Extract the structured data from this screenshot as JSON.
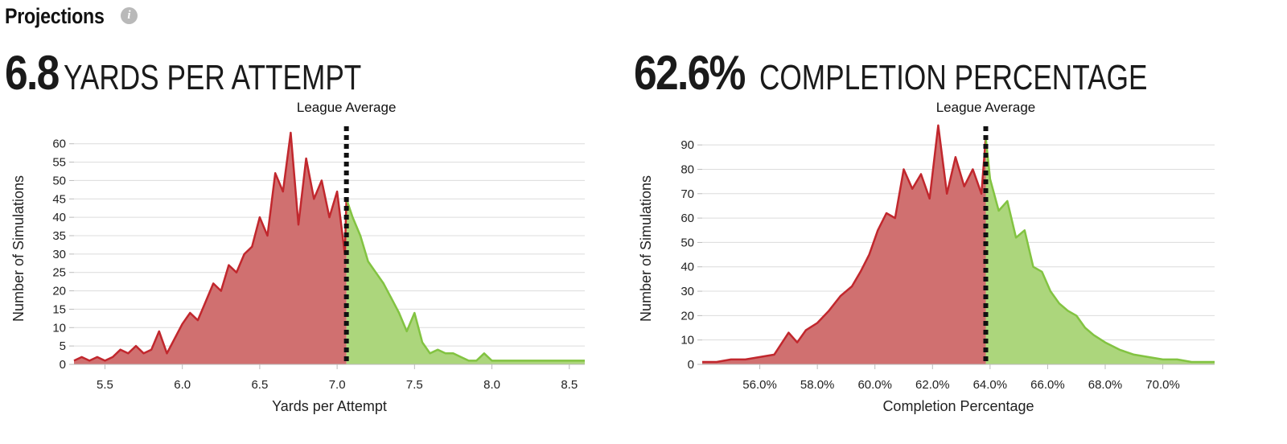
{
  "header": {
    "title": "Projections",
    "info_icon": "info-icon"
  },
  "chart_data": [
    {
      "type": "area",
      "stat_value": "6.8",
      "stat_label": "YARDS PER ATTEMPT",
      "xlabel": "Yards per Attempt",
      "ylabel": "Number of Simulations",
      "xlim": [
        5.3,
        8.6
      ],
      "ylim": [
        0,
        63
      ],
      "x_ticks": [
        5.5,
        6.0,
        6.5,
        7.0,
        7.5,
        8.0,
        8.5
      ],
      "x_tick_labels": [
        "5.5",
        "6.0",
        "6.5",
        "7.0",
        "7.5",
        "8.0",
        "8.5"
      ],
      "y_ticks": [
        0,
        5,
        10,
        15,
        20,
        25,
        30,
        35,
        40,
        45,
        50,
        55,
        60
      ],
      "reference_line": {
        "label": "League Average",
        "x": 7.06
      },
      "below_color": "#c1272d",
      "below_fill": "#d07070",
      "above_color": "#82c341",
      "above_fill": "#acd67c",
      "grid": true,
      "x": [
        5.3,
        5.35,
        5.4,
        5.45,
        5.5,
        5.55,
        5.6,
        5.65,
        5.7,
        5.75,
        5.8,
        5.85,
        5.9,
        5.95,
        6.0,
        6.05,
        6.1,
        6.15,
        6.2,
        6.25,
        6.3,
        6.35,
        6.4,
        6.45,
        6.5,
        6.55,
        6.6,
        6.65,
        6.7,
        6.75,
        6.8,
        6.85,
        6.9,
        6.95,
        7.0,
        7.05,
        7.06,
        7.1,
        7.15,
        7.2,
        7.25,
        7.3,
        7.35,
        7.4,
        7.45,
        7.5,
        7.55,
        7.6,
        7.65,
        7.7,
        7.75,
        7.8,
        7.85,
        7.9,
        7.95,
        8.0,
        8.05,
        8.1,
        8.3,
        8.6
      ],
      "y": [
        1,
        2,
        1,
        2,
        1,
        2,
        4,
        3,
        5,
        3,
        4,
        9,
        3,
        7,
        11,
        14,
        12,
        17,
        22,
        20,
        27,
        25,
        30,
        32,
        40,
        35,
        52,
        47,
        63,
        38,
        56,
        45,
        50,
        40,
        47,
        30,
        45,
        40,
        35,
        28,
        25,
        22,
        18,
        14,
        9,
        14,
        6,
        3,
        4,
        3,
        3,
        2,
        1,
        1,
        3,
        1,
        1,
        1,
        1,
        1
      ]
    },
    {
      "type": "area",
      "stat_value": "62.6%",
      "stat_label": "COMPLETION PERCENTAGE",
      "xlabel": "Completion Percentage",
      "ylabel": "Number of Simulations",
      "xlim": [
        54.0,
        71.8
      ],
      "ylim": [
        0,
        95
      ],
      "x_ticks": [
        56,
        58,
        60,
        62,
        64,
        66,
        68,
        70
      ],
      "x_tick_labels": [
        "56.0%",
        "58.0%",
        "60.0%",
        "62.0%",
        "64.0%",
        "66.0%",
        "68.0%",
        "70.0%"
      ],
      "y_ticks": [
        0,
        10,
        20,
        30,
        40,
        50,
        60,
        70,
        80,
        90
      ],
      "reference_line": {
        "label": "League Average",
        "x": 63.85
      },
      "below_color": "#c1272d",
      "below_fill": "#d07070",
      "above_color": "#82c341",
      "above_fill": "#acd67c",
      "grid": true,
      "x": [
        54.0,
        54.5,
        55.0,
        55.5,
        56.0,
        56.5,
        57.0,
        57.3,
        57.6,
        58.0,
        58.4,
        58.8,
        59.2,
        59.5,
        59.8,
        60.1,
        60.4,
        60.7,
        61.0,
        61.3,
        61.6,
        61.9,
        62.2,
        62.5,
        62.8,
        63.1,
        63.4,
        63.7,
        63.85,
        64.0,
        64.3,
        64.6,
        64.9,
        65.2,
        65.5,
        65.8,
        66.1,
        66.4,
        66.7,
        67.0,
        67.3,
        67.6,
        68.0,
        68.5,
        69.0,
        69.5,
        70.0,
        70.5,
        71.0,
        71.8
      ],
      "y": [
        1,
        1,
        2,
        2,
        3,
        4,
        13,
        9,
        14,
        17,
        22,
        28,
        32,
        38,
        45,
        55,
        62,
        60,
        80,
        72,
        78,
        68,
        98,
        70,
        85,
        73,
        80,
        70,
        93,
        76,
        63,
        67,
        52,
        55,
        40,
        38,
        30,
        25,
        22,
        20,
        15,
        12,
        9,
        6,
        4,
        3,
        2,
        2,
        1,
        1
      ]
    }
  ]
}
